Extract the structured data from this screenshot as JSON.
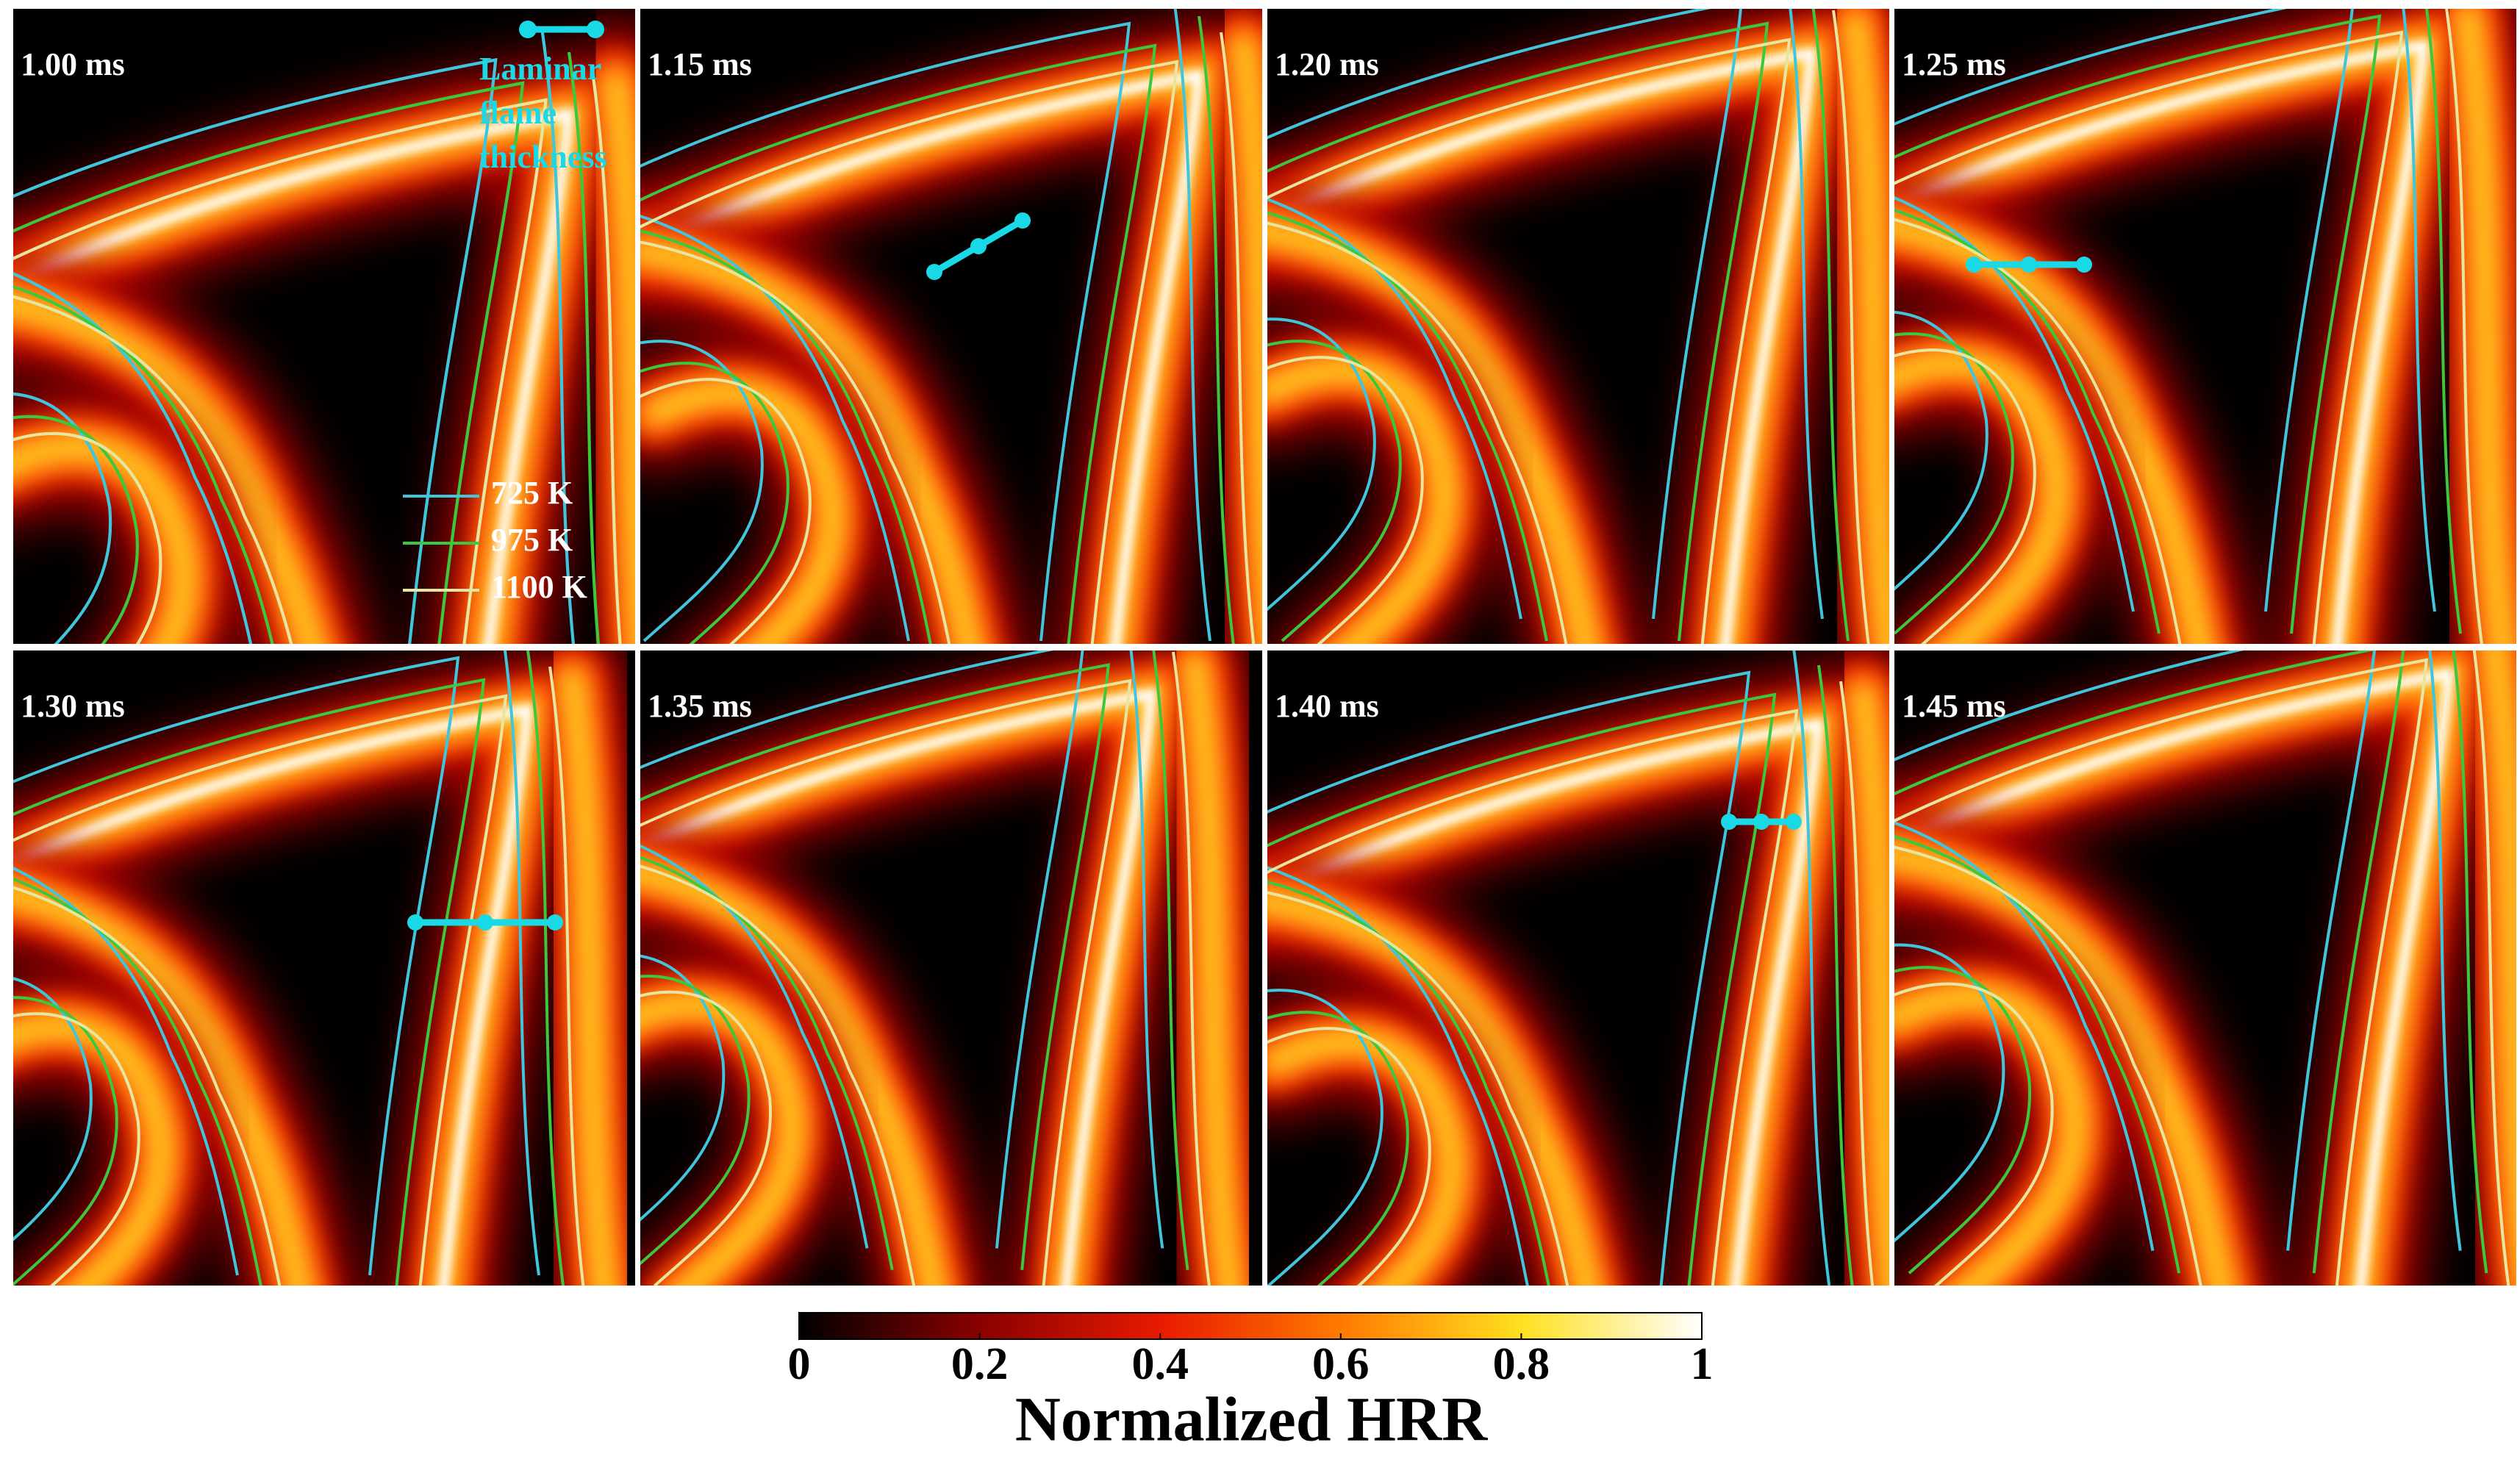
{
  "panels": [
    {
      "label": "1.00 ms"
    },
    {
      "label": "1.15 ms"
    },
    {
      "label": "1.20 ms"
    },
    {
      "label": "1.25 ms"
    },
    {
      "label": "1.30 ms"
    },
    {
      "label": "1.35 ms"
    },
    {
      "label": "1.40 ms"
    },
    {
      "label": "1.45 ms"
    }
  ],
  "legend": {
    "scale_bar": [
      "Laminar",
      "flame",
      "thickness"
    ],
    "scale_bar_color": "#19d9e6",
    "contours": [
      {
        "label": "725 K",
        "color": "#3fc6dc"
      },
      {
        "label": "975 K",
        "color": "#3cc83c"
      },
      {
        "label": "1100 K",
        "color": "#e6e6a0"
      }
    ]
  },
  "colorbar": {
    "title": "Normalized HRR",
    "lim": [
      0,
      1
    ],
    "ticks": [
      0,
      0.2,
      0.4,
      0.6,
      0.8,
      1
    ]
  }
}
